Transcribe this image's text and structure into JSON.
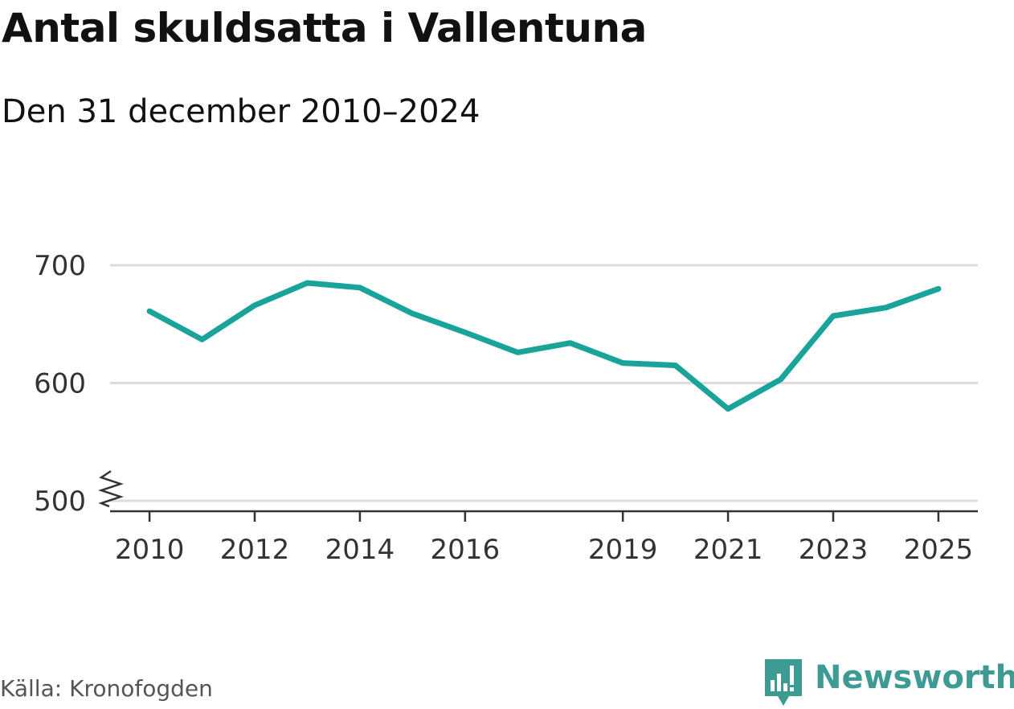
{
  "title": "Antal skuldsatta i Vallentuna",
  "subtitle": "Den 31 december 2010–2024",
  "source": "Källa: Kronofogden",
  "brand": {
    "name": "Newsworthy",
    "icon": "newsworthy-logo-icon",
    "color": "#3d9b94"
  },
  "colors": {
    "line": "#1aa39a",
    "grid": "#dddddd",
    "axis": "#333333"
  },
  "chart_data": {
    "type": "line",
    "title": "Antal skuldsatta i Vallentuna",
    "subtitle": "Den 31 december 2010–2024",
    "x": [
      2010,
      2011,
      2012,
      2013,
      2014,
      2015,
      2016,
      2017,
      2018,
      2019,
      2020,
      2021,
      2022,
      2023,
      2024,
      2025
    ],
    "series": [
      {
        "values": [
          661,
          637,
          666,
          685,
          681,
          659,
          643,
          626,
          634,
          617,
          615,
          578,
          603,
          657,
          664,
          680
        ]
      }
    ],
    "xticks": [
      "2010",
      "2012",
      "2014",
      "2016",
      "2019",
      "2021",
      "2023",
      "2025"
    ],
    "yticks": [
      "500",
      "600",
      "700"
    ],
    "ylim": [
      500,
      700
    ],
    "y_axis_break": true,
    "grid": true,
    "legend": "none"
  }
}
